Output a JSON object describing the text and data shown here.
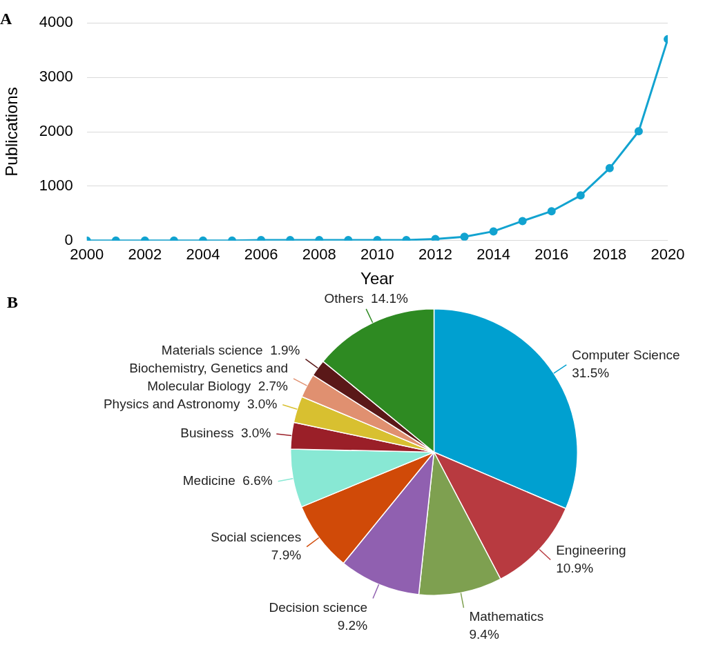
{
  "chart_data": [
    {
      "type": "line",
      "title": "A",
      "xlabel": "Year",
      "ylabel": "Publications",
      "x": [
        2000,
        2001,
        2002,
        2003,
        2004,
        2005,
        2006,
        2007,
        2008,
        2009,
        2010,
        2011,
        2012,
        2013,
        2014,
        2015,
        2016,
        2017,
        2018,
        2019,
        2020
      ],
      "series": [
        {
          "color": "#12a3d0",
          "values": [
            0,
            0,
            0,
            0,
            0,
            0,
            10,
            10,
            10,
            10,
            10,
            10,
            30,
            70,
            170,
            360,
            540,
            830,
            1330,
            2010,
            3700
          ]
        }
      ],
      "xlim": [
        2000,
        2020
      ],
      "xticks": [
        2000,
        2002,
        2004,
        2006,
        2008,
        2010,
        2012,
        2014,
        2016,
        2018,
        2020
      ],
      "ylim": [
        0,
        4000
      ],
      "yticks": [
        0,
        1000,
        2000,
        3000,
        4000
      ],
      "grid": "y",
      "legend": false,
      "marker": "circle",
      "line_style": "solid"
    },
    {
      "type": "pie",
      "title": "B",
      "categories": [
        "Computer Science",
        "Engineering",
        "Mathematics",
        "Decision science",
        "Social sciences",
        "Medicine",
        "Business",
        "Physics and Astronomy",
        "Biochemistry, Genetics and Molecular Biology",
        "Materials science",
        "Others"
      ],
      "values": [
        31.5,
        10.9,
        9.4,
        9.2,
        7.9,
        6.6,
        3.0,
        3.0,
        2.7,
        1.9,
        14.1
      ],
      "value_labels": [
        "31.5%",
        "10.9%",
        "9.4%",
        "9.2%",
        "7.9%",
        "6.6%",
        "3.0%",
        "3.0%",
        "2.7%",
        "1.9%",
        "14.1%"
      ],
      "colors": [
        "#00a0d0",
        "#b83a40",
        "#7ea050",
        "#9060b0",
        "#d04a08",
        "#88e8d4",
        "#9a1f28",
        "#d8c030",
        "#e09070",
        "#5a1818",
        "#2e8a22"
      ],
      "legend": false
    }
  ]
}
